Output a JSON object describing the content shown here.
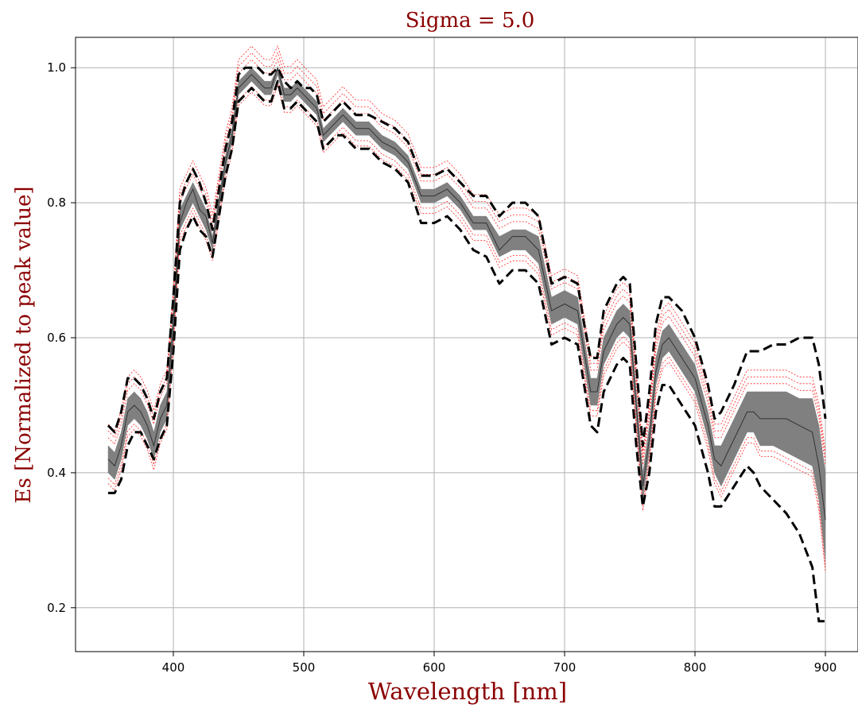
{
  "chart_data": {
    "type": "line",
    "title": "Sigma = 5.0",
    "xlabel": "Wavelength [nm]",
    "ylabel": "Es [Normalized to peak value]",
    "xlim": [
      325,
      925
    ],
    "ylim": [
      0.135,
      1.045
    ],
    "x_ticks": [
      400,
      500,
      600,
      700,
      800,
      900
    ],
    "y_ticks": [
      0.2,
      0.4,
      0.6,
      0.8,
      1.0
    ],
    "x_tick_labels": [
      "400",
      "500",
      "600",
      "700",
      "800",
      "900"
    ],
    "y_tick_labels": [
      "0.2",
      "0.4",
      "0.6",
      "0.8",
      "1.0"
    ],
    "grid": true,
    "legend": "none",
    "colors": {
      "title": "#8b0000",
      "axis_label": "#8b0000",
      "band": "#808080",
      "mean": "#333333",
      "outer": "#000000",
      "red": "#ff0000",
      "grid": "#b0b0b0"
    },
    "x": [
      350,
      355,
      360,
      365,
      370,
      375,
      380,
      385,
      390,
      395,
      400,
      405,
      410,
      415,
      420,
      425,
      430,
      435,
      440,
      445,
      450,
      455,
      460,
      465,
      470,
      475,
      480,
      485,
      490,
      495,
      500,
      505,
      510,
      515,
      520,
      525,
      530,
      540,
      550,
      560,
      570,
      580,
      590,
      600,
      610,
      620,
      630,
      640,
      650,
      660,
      670,
      680,
      690,
      700,
      710,
      715,
      720,
      725,
      730,
      740,
      745,
      750,
      755,
      760,
      765,
      770,
      775,
      780,
      790,
      800,
      810,
      815,
      820,
      830,
      840,
      845,
      850,
      860,
      870,
      880,
      890,
      895,
      900
    ],
    "series": [
      {
        "role": "mean",
        "values": [
          0.42,
          0.41,
          0.44,
          0.49,
          0.5,
          0.49,
          0.47,
          0.44,
          0.48,
          0.5,
          0.62,
          0.77,
          0.8,
          0.82,
          0.79,
          0.78,
          0.74,
          0.8,
          0.86,
          0.9,
          0.97,
          0.98,
          0.99,
          0.98,
          0.97,
          0.97,
          1.0,
          0.96,
          0.96,
          0.97,
          0.96,
          0.95,
          0.94,
          0.9,
          0.91,
          0.92,
          0.93,
          0.91,
          0.91,
          0.89,
          0.88,
          0.86,
          0.81,
          0.81,
          0.82,
          0.8,
          0.77,
          0.77,
          0.73,
          0.75,
          0.75,
          0.73,
          0.64,
          0.65,
          0.64,
          0.58,
          0.52,
          0.52,
          0.58,
          0.62,
          0.63,
          0.62,
          0.5,
          0.38,
          0.45,
          0.55,
          0.59,
          0.6,
          0.57,
          0.54,
          0.47,
          0.42,
          0.41,
          0.45,
          0.49,
          0.49,
          0.48,
          0.48,
          0.48,
          0.47,
          0.46,
          0.41,
          0.33
        ]
      },
      {
        "role": "band_upper",
        "values": [
          0.44,
          0.43,
          0.46,
          0.51,
          0.52,
          0.51,
          0.49,
          0.46,
          0.5,
          0.52,
          0.64,
          0.79,
          0.81,
          0.83,
          0.81,
          0.79,
          0.75,
          0.81,
          0.87,
          0.91,
          0.98,
          0.99,
          1.0,
          0.99,
          0.98,
          0.98,
          1.0,
          0.97,
          0.97,
          0.98,
          0.97,
          0.96,
          0.95,
          0.91,
          0.92,
          0.93,
          0.94,
          0.92,
          0.92,
          0.9,
          0.89,
          0.87,
          0.82,
          0.82,
          0.83,
          0.81,
          0.78,
          0.78,
          0.75,
          0.76,
          0.76,
          0.75,
          0.66,
          0.67,
          0.66,
          0.6,
          0.54,
          0.54,
          0.6,
          0.64,
          0.65,
          0.64,
          0.52,
          0.4,
          0.47,
          0.57,
          0.61,
          0.62,
          0.59,
          0.56,
          0.49,
          0.44,
          0.44,
          0.48,
          0.52,
          0.52,
          0.52,
          0.52,
          0.52,
          0.51,
          0.51,
          0.47,
          0.4
        ]
      },
      {
        "role": "band_lower",
        "values": [
          0.4,
          0.39,
          0.42,
          0.47,
          0.48,
          0.47,
          0.45,
          0.42,
          0.46,
          0.48,
          0.6,
          0.76,
          0.78,
          0.8,
          0.78,
          0.76,
          0.73,
          0.79,
          0.85,
          0.89,
          0.96,
          0.97,
          0.98,
          0.97,
          0.96,
          0.96,
          0.99,
          0.95,
          0.95,
          0.96,
          0.95,
          0.94,
          0.93,
          0.89,
          0.9,
          0.91,
          0.92,
          0.9,
          0.9,
          0.88,
          0.87,
          0.85,
          0.8,
          0.8,
          0.81,
          0.79,
          0.76,
          0.76,
          0.72,
          0.73,
          0.73,
          0.71,
          0.62,
          0.63,
          0.62,
          0.56,
          0.5,
          0.5,
          0.56,
          0.6,
          0.61,
          0.6,
          0.48,
          0.36,
          0.43,
          0.53,
          0.57,
          0.58,
          0.55,
          0.52,
          0.45,
          0.4,
          0.38,
          0.42,
          0.46,
          0.46,
          0.44,
          0.44,
          0.43,
          0.42,
          0.41,
          0.36,
          0.27
        ]
      },
      {
        "role": "outer_upper",
        "values": [
          0.47,
          0.46,
          0.49,
          0.54,
          0.54,
          0.53,
          0.51,
          0.48,
          0.52,
          0.54,
          0.66,
          0.8,
          0.83,
          0.85,
          0.83,
          0.8,
          0.76,
          0.82,
          0.88,
          0.92,
          0.99,
          1.0,
          1.0,
          1.0,
          0.99,
          0.99,
          1.0,
          0.98,
          0.97,
          0.98,
          0.97,
          0.97,
          0.96,
          0.92,
          0.93,
          0.94,
          0.95,
          0.93,
          0.93,
          0.92,
          0.91,
          0.89,
          0.84,
          0.84,
          0.85,
          0.83,
          0.81,
          0.81,
          0.78,
          0.8,
          0.8,
          0.78,
          0.68,
          0.69,
          0.68,
          0.62,
          0.57,
          0.57,
          0.64,
          0.68,
          0.69,
          0.68,
          0.56,
          0.44,
          0.52,
          0.62,
          0.66,
          0.66,
          0.64,
          0.6,
          0.53,
          0.48,
          0.49,
          0.53,
          0.58,
          0.58,
          0.58,
          0.59,
          0.59,
          0.6,
          0.6,
          0.56,
          0.48
        ]
      },
      {
        "role": "outer_lower",
        "values": [
          0.37,
          0.37,
          0.39,
          0.44,
          0.46,
          0.46,
          0.44,
          0.42,
          0.45,
          0.47,
          0.58,
          0.73,
          0.76,
          0.78,
          0.76,
          0.75,
          0.72,
          0.78,
          0.84,
          0.88,
          0.95,
          0.96,
          0.97,
          0.96,
          0.95,
          0.95,
          0.98,
          0.94,
          0.94,
          0.95,
          0.94,
          0.93,
          0.92,
          0.88,
          0.89,
          0.9,
          0.9,
          0.88,
          0.88,
          0.86,
          0.85,
          0.83,
          0.77,
          0.77,
          0.78,
          0.76,
          0.73,
          0.72,
          0.68,
          0.7,
          0.7,
          0.68,
          0.59,
          0.6,
          0.59,
          0.53,
          0.47,
          0.46,
          0.52,
          0.56,
          0.57,
          0.56,
          0.44,
          0.35,
          0.4,
          0.49,
          0.53,
          0.53,
          0.5,
          0.47,
          0.4,
          0.35,
          0.35,
          0.38,
          0.41,
          0.4,
          0.38,
          0.36,
          0.34,
          0.31,
          0.26,
          0.18,
          0.18
        ]
      }
    ]
  }
}
